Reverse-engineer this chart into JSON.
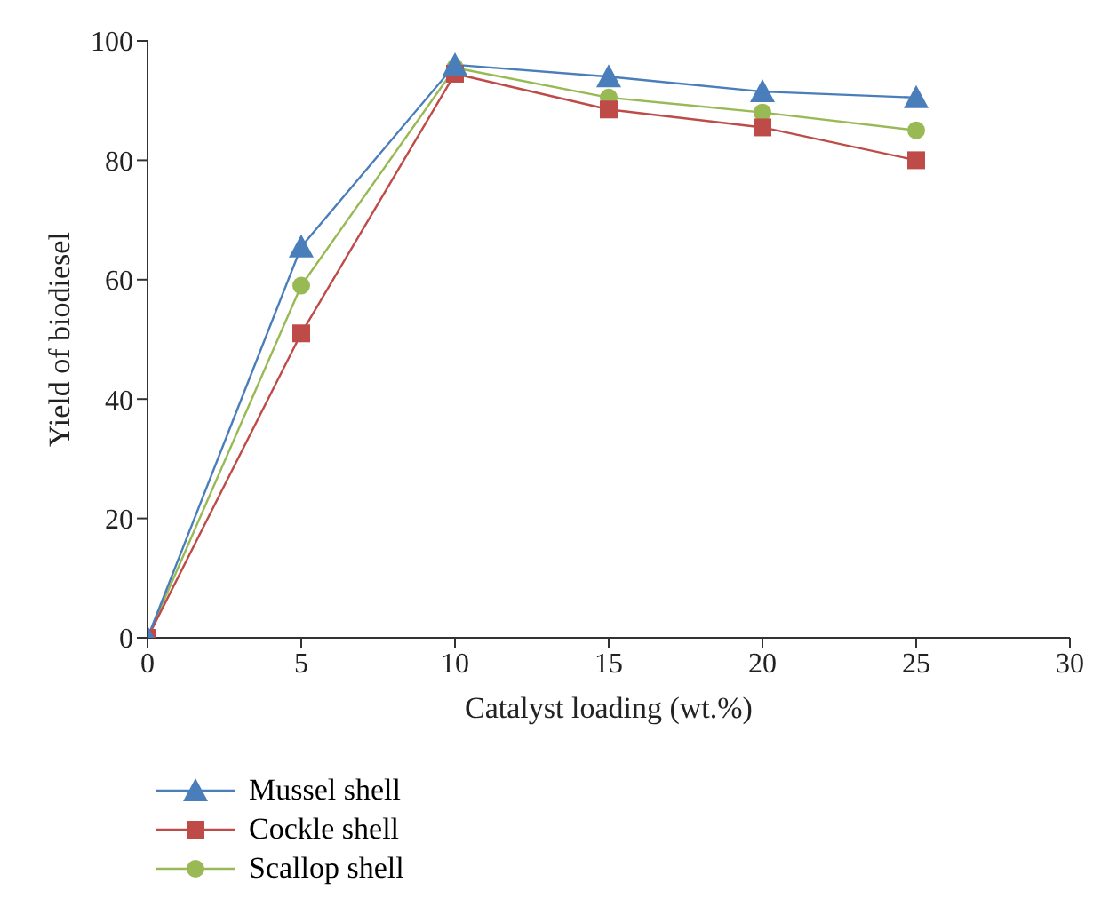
{
  "chart_data": {
    "type": "line",
    "xlabel": "Catalyst loading (wt.%)",
    "ylabel": "Yield of biodiesel",
    "x": [
      0,
      5,
      10,
      15,
      20,
      25
    ],
    "xlim": [
      0,
      30
    ],
    "xticks": [
      0,
      5,
      10,
      15,
      20,
      25,
      30
    ],
    "ylim": [
      0,
      100
    ],
    "yticks": [
      0,
      20,
      40,
      60,
      80,
      100
    ],
    "grid": false,
    "legend": "bottom left",
    "series": [
      {
        "name": "Mussel shell",
        "color": "#4a7ebb",
        "marker": "triangle",
        "values": [
          0,
          65.5,
          96,
          94,
          91.5,
          90.5
        ]
      },
      {
        "name": "Cockle shell",
        "color": "#be4b48",
        "marker": "square",
        "values": [
          0,
          51,
          94.5,
          88.5,
          85.5,
          80
        ]
      },
      {
        "name": "Scallop shell",
        "color": "#98b954",
        "marker": "circle",
        "values": [
          0,
          59,
          95.5,
          90.5,
          88,
          85
        ]
      }
    ]
  }
}
